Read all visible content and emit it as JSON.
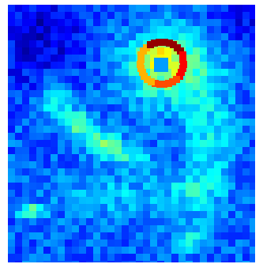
{
  "image": {
    "subject": "",
    "palette": [
      "#00007f",
      "#0000ff",
      "#007fff",
      "#00ffff",
      "#7fff7f",
      "#ffff00",
      "#ff7f00",
      "#ff0000",
      "#7f0000"
    ]
  }
}
